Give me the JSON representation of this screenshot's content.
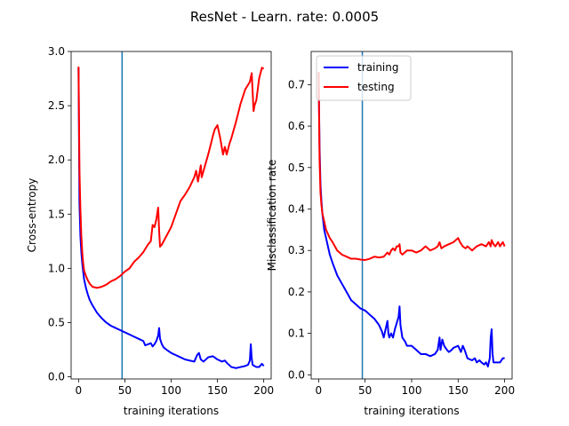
{
  "figure": {
    "title": "ResNet - Learn. rate: 0.0005"
  },
  "colors": {
    "training": "#0000ff",
    "testing": "#ff0000",
    "vline": "#1f77b4"
  },
  "chart_data": [
    {
      "type": "line",
      "title": "",
      "xlabel": "training iterations",
      "ylabel": "Cross-entropy",
      "xlim": [
        -8,
        208
      ],
      "ylim": [
        -0.02,
        3.0
      ],
      "xticks": [
        0,
        50,
        100,
        150,
        200
      ],
      "xtick_labels": [
        "0",
        "50",
        "100",
        "150",
        "200"
      ],
      "yticks": [
        0.0,
        0.5,
        1.0,
        1.5,
        2.0,
        2.5,
        3.0
      ],
      "ytick_labels": [
        "0.0",
        "0.5",
        "1.0",
        "1.5",
        "2.0",
        "2.5",
        "3.0"
      ],
      "vline_x": 47,
      "grid": false,
      "legend": "",
      "series": [
        {
          "color": "#0000ff",
          "x": [
            0,
            1,
            2,
            3,
            4,
            5,
            6,
            8,
            10,
            12,
            15,
            20,
            25,
            30,
            35,
            40,
            45,
            50,
            55,
            60,
            65,
            70,
            72,
            75,
            78,
            80,
            82,
            84,
            86,
            87,
            88,
            90,
            92,
            95,
            100,
            105,
            110,
            115,
            120,
            125,
            128,
            130,
            132,
            135,
            140,
            145,
            150,
            155,
            158,
            160,
            165,
            170,
            175,
            180,
            183,
            185,
            186,
            187,
            188,
            190,
            192,
            195,
            198,
            200
          ],
          "y": [
            2.85,
            1.6,
            1.3,
            1.15,
            1.05,
            0.97,
            0.9,
            0.82,
            0.76,
            0.71,
            0.66,
            0.59,
            0.54,
            0.5,
            0.47,
            0.45,
            0.43,
            0.41,
            0.39,
            0.37,
            0.35,
            0.33,
            0.29,
            0.3,
            0.31,
            0.28,
            0.3,
            0.33,
            0.38,
            0.45,
            0.35,
            0.3,
            0.27,
            0.25,
            0.22,
            0.2,
            0.18,
            0.16,
            0.15,
            0.14,
            0.2,
            0.22,
            0.16,
            0.14,
            0.18,
            0.19,
            0.16,
            0.14,
            0.15,
            0.13,
            0.09,
            0.08,
            0.09,
            0.1,
            0.11,
            0.15,
            0.3,
            0.17,
            0.11,
            0.1,
            0.09,
            0.09,
            0.12,
            0.1
          ]
        },
        {
          "color": "#ff0000",
          "x": [
            0,
            1,
            2,
            3,
            4,
            5,
            6,
            8,
            10,
            12,
            15,
            20,
            25,
            30,
            35,
            40,
            45,
            50,
            55,
            60,
            65,
            70,
            75,
            78,
            80,
            82,
            84,
            86,
            87,
            88,
            90,
            95,
            100,
            105,
            110,
            115,
            120,
            125,
            127,
            129,
            130,
            132,
            133,
            135,
            140,
            143,
            145,
            147,
            150,
            153,
            155,
            156,
            158,
            160,
            163,
            165,
            170,
            175,
            180,
            185,
            187,
            189,
            190,
            192,
            195,
            198,
            200
          ],
          "y": [
            2.86,
            1.9,
            1.55,
            1.3,
            1.15,
            1.05,
            0.98,
            0.93,
            0.89,
            0.86,
            0.83,
            0.82,
            0.83,
            0.85,
            0.88,
            0.9,
            0.93,
            0.97,
            1.0,
            1.06,
            1.1,
            1.15,
            1.22,
            1.25,
            1.4,
            1.38,
            1.45,
            1.56,
            1.35,
            1.2,
            1.22,
            1.3,
            1.38,
            1.5,
            1.62,
            1.68,
            1.75,
            1.84,
            1.9,
            1.8,
            1.85,
            1.95,
            1.84,
            1.9,
            2.05,
            2.15,
            2.22,
            2.28,
            2.32,
            2.2,
            2.1,
            2.05,
            2.12,
            2.05,
            2.15,
            2.2,
            2.35,
            2.52,
            2.65,
            2.72,
            2.8,
            2.45,
            2.5,
            2.55,
            2.75,
            2.85,
            2.84
          ]
        }
      ]
    },
    {
      "type": "line",
      "title": "",
      "xlabel": "training iterations",
      "ylabel": "Misclassification rate",
      "xlim": [
        -8,
        208
      ],
      "ylim": [
        -0.01,
        0.78
      ],
      "xticks": [
        0,
        50,
        100,
        150,
        200
      ],
      "xtick_labels": [
        "0",
        "50",
        "100",
        "150",
        "200"
      ],
      "yticks": [
        0.0,
        0.1,
        0.2,
        0.3,
        0.4,
        0.5,
        0.6,
        0.7
      ],
      "ytick_labels": [
        "0.0",
        "0.1",
        "0.2",
        "0.3",
        "0.4",
        "0.5",
        "0.6",
        "0.7"
      ],
      "vline_x": 47,
      "grid": false,
      "legend": "top-left",
      "series": [
        {
          "name": "training",
          "color": "#0000ff",
          "x": [
            0,
            1,
            2,
            3,
            4,
            5,
            6,
            8,
            10,
            12,
            15,
            20,
            25,
            30,
            35,
            40,
            45,
            50,
            55,
            60,
            65,
            68,
            70,
            72,
            74,
            75,
            76,
            78,
            80,
            82,
            84,
            86,
            87,
            88,
            90,
            93,
            95,
            100,
            105,
            110,
            115,
            120,
            125,
            128,
            130,
            131,
            133,
            135,
            138,
            140,
            143,
            145,
            150,
            153,
            155,
            157,
            160,
            165,
            168,
            170,
            173,
            175,
            178,
            180,
            182,
            184,
            185,
            186,
            187,
            188,
            190,
            192,
            195,
            198,
            200
          ],
          "y": [
            0.73,
            0.55,
            0.46,
            0.42,
            0.39,
            0.37,
            0.35,
            0.33,
            0.31,
            0.29,
            0.27,
            0.24,
            0.22,
            0.2,
            0.18,
            0.17,
            0.16,
            0.155,
            0.145,
            0.135,
            0.12,
            0.105,
            0.09,
            0.11,
            0.13,
            0.1,
            0.09,
            0.1,
            0.09,
            0.11,
            0.125,
            0.14,
            0.165,
            0.12,
            0.09,
            0.08,
            0.07,
            0.07,
            0.06,
            0.05,
            0.05,
            0.045,
            0.05,
            0.06,
            0.09,
            0.06,
            0.085,
            0.07,
            0.06,
            0.055,
            0.06,
            0.065,
            0.07,
            0.055,
            0.07,
            0.06,
            0.04,
            0.035,
            0.04,
            0.03,
            0.035,
            0.03,
            0.025,
            0.03,
            0.02,
            0.04,
            0.09,
            0.11,
            0.05,
            0.03,
            0.03,
            0.03,
            0.03,
            0.04,
            0.04
          ]
        },
        {
          "name": "testing",
          "color": "#ff0000",
          "x": [
            0,
            1,
            2,
            3,
            4,
            5,
            6,
            8,
            10,
            12,
            15,
            20,
            25,
            30,
            35,
            40,
            45,
            50,
            55,
            60,
            65,
            70,
            72,
            74,
            76,
            78,
            80,
            82,
            84,
            86,
            87,
            88,
            90,
            95,
            100,
            105,
            110,
            115,
            120,
            125,
            128,
            130,
            132,
            135,
            140,
            145,
            150,
            152,
            155,
            158,
            160,
            165,
            170,
            175,
            180,
            183,
            185,
            186,
            188,
            190,
            193,
            195,
            198,
            200
          ],
          "y": [
            0.73,
            0.52,
            0.44,
            0.41,
            0.39,
            0.38,
            0.37,
            0.35,
            0.34,
            0.33,
            0.32,
            0.3,
            0.29,
            0.285,
            0.28,
            0.28,
            0.278,
            0.277,
            0.28,
            0.285,
            0.283,
            0.285,
            0.29,
            0.295,
            0.29,
            0.3,
            0.305,
            0.3,
            0.31,
            0.31,
            0.315,
            0.295,
            0.29,
            0.3,
            0.3,
            0.295,
            0.3,
            0.31,
            0.3,
            0.305,
            0.31,
            0.32,
            0.305,
            0.31,
            0.315,
            0.32,
            0.33,
            0.32,
            0.31,
            0.305,
            0.31,
            0.3,
            0.31,
            0.315,
            0.31,
            0.32,
            0.31,
            0.325,
            0.315,
            0.31,
            0.32,
            0.31,
            0.32,
            0.31
          ]
        }
      ]
    }
  ]
}
